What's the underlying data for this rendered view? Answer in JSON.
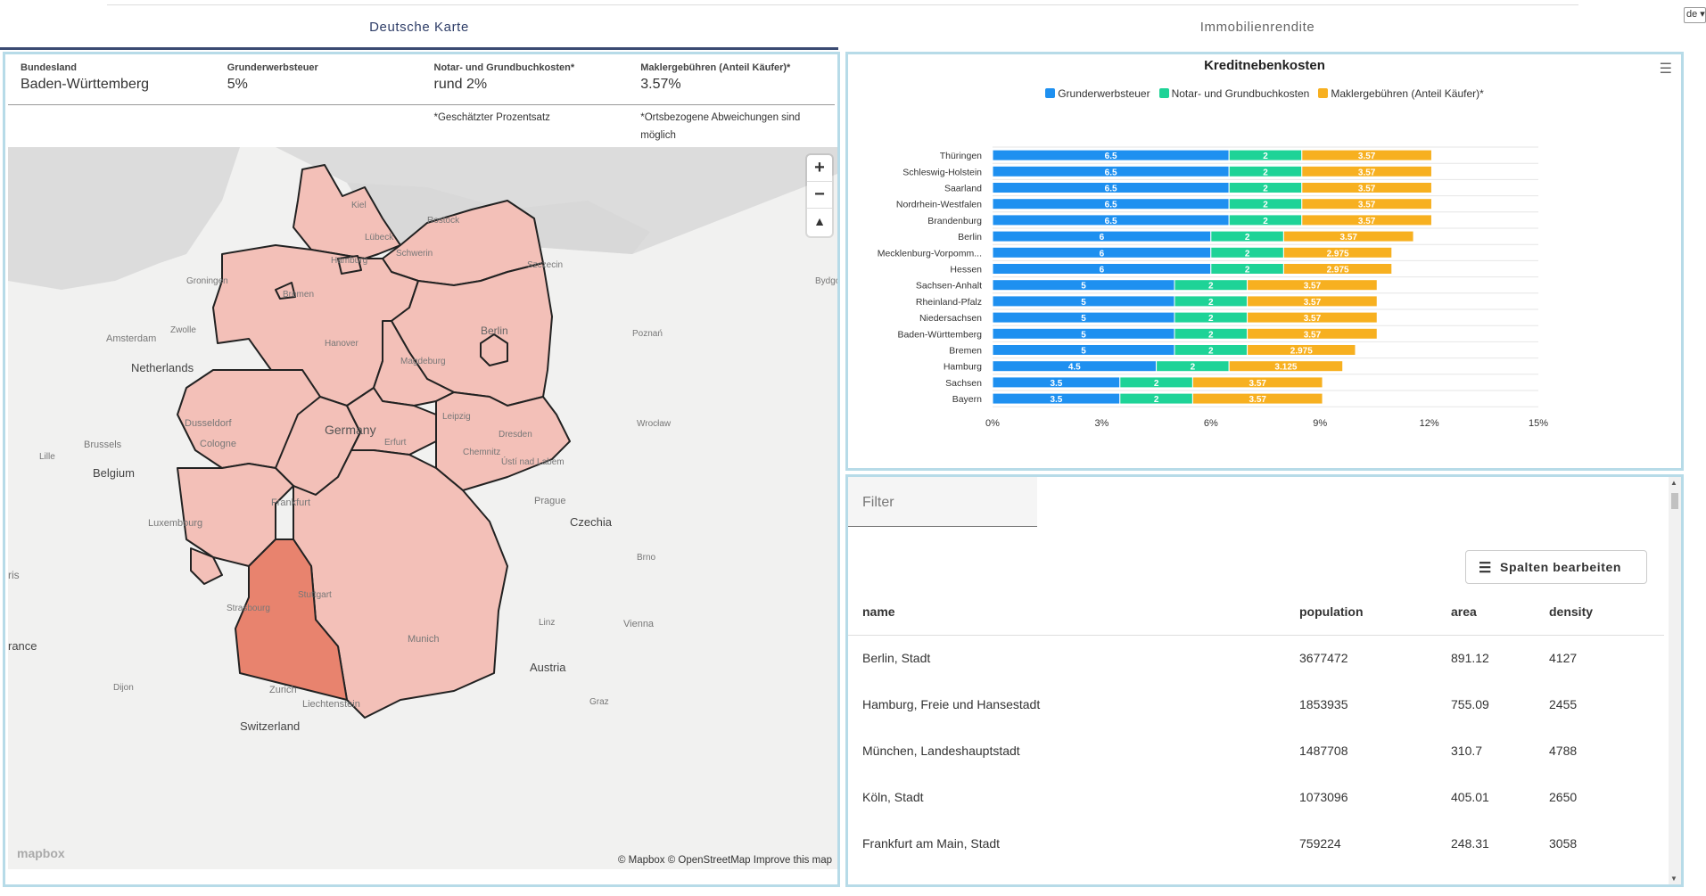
{
  "tabs": [
    "Deutsche Karte",
    "Immobilienrendite"
  ],
  "lang": "de",
  "info": {
    "labels": [
      "Bundesland",
      "Grunderwerbsteuer",
      "Notar- und Grundbuchkosten*",
      "Maklergebühren (Anteil Käufer)*"
    ],
    "values": [
      "Baden-Württemberg",
      "5%",
      "rund 2%",
      "3.57%"
    ],
    "notes": [
      "",
      "",
      "*Geschätzter Prozentsatz",
      "*Ortsbezogene Abweichungen sind möglich"
    ]
  },
  "map": {
    "zoom_in": "+",
    "zoom_out": "−",
    "compass": "▲",
    "labels": {
      "kiel": "Kiel",
      "rostock": "Rostock",
      "luebeck": "Lübeck",
      "hamburg": "Hamburg",
      "schwerin": "Schwerin",
      "szczecin": "Szczecin",
      "groningen": "Groningen",
      "bremen": "Bremen",
      "bydgoszcz": "Bydgo",
      "zwolle": "Zwolle",
      "amsterdam": "Amsterdam",
      "hanover": "Hanover",
      "berlin": "Berlin",
      "poznan": "Poznań",
      "netherlands": "Netherlands",
      "magdeburg": "Magdeburg",
      "duesseldorf": "Dusseldorf",
      "wroclaw": "Wrocław",
      "brussels": "Brussels",
      "cologne": "Cologne",
      "germany": "Germany",
      "leipzig": "Leipzig",
      "dresden": "Dresden",
      "lille": "Lille",
      "erfurt": "Erfurt",
      "chemnitz": "Chemnitz",
      "usti": "Ústí nad Labem",
      "belgium": "Belgium",
      "frankfurt": "Frankfurt",
      "prague": "Prague",
      "czechia": "Czechia",
      "luxembourg": "Luxembourg",
      "brno": "Brno",
      "paris": "ris",
      "stuttgart": "Stuttgart",
      "strasbourg": "Strasbourg",
      "linz": "Linz",
      "vienna": "Vienna",
      "munich": "Munich",
      "france": "rance",
      "austria": "Austria",
      "dijon": "Dijon",
      "zurich": "Zurich",
      "liechtenstein": "Liechtenstein",
      "graz": "Graz",
      "switzerland": "Switzerland"
    },
    "logo": "mapbox",
    "attribution": "© Mapbox © OpenStreetMap",
    "improve": "Improve this map"
  },
  "chart_data": {
    "type": "bar",
    "orientation": "horizontal",
    "stacked": true,
    "title": "Kreditnebenkosten",
    "categories": [
      "Thüringen",
      "Schleswig-Holstein",
      "Saarland",
      "Nordrhein-Westfalen",
      "Brandenburg",
      "Berlin",
      "Mecklenburg-Vorpomm...",
      "Hessen",
      "Sachsen-Anhalt",
      "Rheinland-Pfalz",
      "Niedersachsen",
      "Baden-Württemberg",
      "Bremen",
      "Hamburg",
      "Sachsen",
      "Bayern"
    ],
    "series": [
      {
        "name": "Grunderwerbsteuer",
        "color": "#1e90f0",
        "values": [
          6.5,
          6.5,
          6.5,
          6.5,
          6.5,
          6,
          6,
          6,
          5,
          5,
          5,
          5,
          5,
          4.5,
          3.5,
          3.5
        ]
      },
      {
        "name": "Notar- und Grundbuchkosten",
        "color": "#1ed397",
        "values": [
          2,
          2,
          2,
          2,
          2,
          2,
          2,
          2,
          2,
          2,
          2,
          2,
          2,
          2,
          2,
          2
        ]
      },
      {
        "name": "Maklergebühren (Anteil Käufer)*",
        "color": "#f7b020",
        "values": [
          3.57,
          3.57,
          3.57,
          3.57,
          3.57,
          3.57,
          2.975,
          2.975,
          3.57,
          3.57,
          3.57,
          3.57,
          2.975,
          3.125,
          3.57,
          3.57
        ]
      }
    ],
    "xlim": [
      0,
      15
    ],
    "xticks": [
      "0%",
      "3%",
      "6%",
      "9%",
      "12%",
      "15%"
    ],
    "grid": true,
    "legend": "top"
  },
  "table": {
    "filter_placeholder": "Filter",
    "edit_columns": "Spalten bearbeiten",
    "headers": [
      "name",
      "population",
      "area",
      "density"
    ],
    "rows": [
      [
        "Berlin, Stadt",
        "3677472",
        "891.12",
        "4127"
      ],
      [
        "Hamburg, Freie und Hansestadt",
        "1853935",
        "755.09",
        "2455"
      ],
      [
        "München, Landeshauptstadt",
        "1487708",
        "310.7",
        "4788"
      ],
      [
        "Köln, Stadt",
        "1073096",
        "405.01",
        "2650"
      ],
      [
        "Frankfurt am Main, Stadt",
        "759224",
        "248.31",
        "3058"
      ]
    ]
  }
}
